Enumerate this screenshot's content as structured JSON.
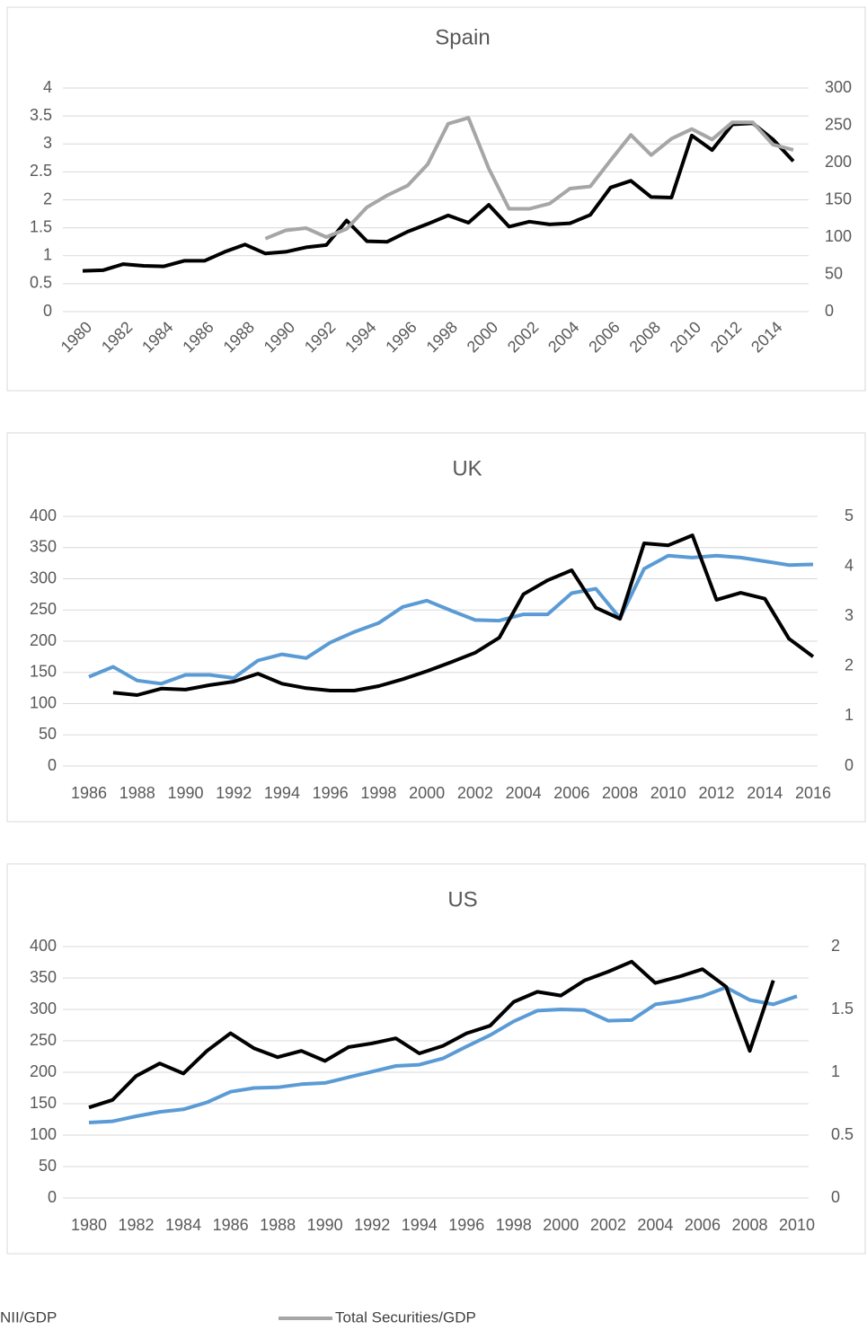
{
  "chart_data": [
    {
      "type": "line",
      "title": "Spain",
      "categories": [
        "1980",
        null,
        "1982",
        null,
        "1984",
        null,
        "1986",
        null,
        "1988",
        null,
        "1990",
        null,
        "1992",
        null,
        "1994",
        null,
        "1996",
        null,
        "1998",
        null,
        "2000",
        null,
        "2002",
        null,
        "2004",
        null,
        "2006",
        null,
        "2008",
        null,
        "2010",
        null,
        "2012",
        null,
        "2014",
        null
      ],
      "series": [
        {
          "name": "NII/GDP",
          "color": "#000000",
          "values": [
            0.73,
            0.74,
            0.85,
            0.82,
            0.81,
            0.91,
            0.91,
            1.07,
            1.2,
            1.04,
            1.07,
            1.15,
            1.19,
            1.63,
            1.26,
            1.25,
            1.43,
            1.57,
            1.72,
            1.59,
            1.91,
            1.52,
            1.61,
            1.56,
            1.58,
            1.73,
            2.22,
            2.34,
            2.05,
            2.04,
            3.15,
            2.89,
            3.35,
            3.37,
            3.08,
            2.69
          ]
        },
        {
          "name": "Total Securities/GDP",
          "color": "#a6a6a6",
          "axis": "y2",
          "values": [
            null,
            null,
            null,
            null,
            null,
            null,
            null,
            null,
            null,
            98,
            109,
            112,
            100,
            111,
            140,
            156,
            169,
            198,
            252,
            260,
            192,
            138,
            138,
            145,
            165,
            168,
            203,
            237,
            210,
            232,
            245,
            231,
            254,
            254,
            224,
            217
          ]
        }
      ],
      "ylim": [
        0,
        4
      ],
      "yticks": [
        0,
        0.5,
        1,
        1.5,
        2,
        2.5,
        3,
        3.5,
        4
      ],
      "y2lim": [
        0,
        300
      ],
      "y2ticks": [
        0,
        50,
        100,
        150,
        200,
        250,
        300
      ],
      "grid": true
    },
    {
      "type": "line",
      "title": "UK",
      "categories": [
        "1986",
        null,
        "1988",
        null,
        "1990",
        null,
        "1992",
        null,
        "1994",
        null,
        "1996",
        null,
        "1998",
        null,
        "2000",
        null,
        "2002",
        null,
        "2004",
        null,
        "2006",
        null,
        "2008",
        null,
        "2010",
        null,
        "2012",
        null,
        "2014",
        null,
        "2016"
      ],
      "series": [
        {
          "color": "#5b9bd5",
          "values": [
            143,
            159,
            137,
            132,
            146,
            146,
            141,
            169,
            179,
            173,
            198,
            215,
            229,
            255,
            265,
            249,
            234,
            233,
            243,
            243,
            277,
            284,
            237,
            316,
            337,
            334,
            337,
            334,
            328,
            322,
            323
          ]
        },
        {
          "color": "#000000",
          "axis": "y2",
          "values": [
            null,
            1.47,
            1.42,
            1.55,
            1.53,
            1.62,
            1.69,
            1.85,
            1.65,
            1.56,
            1.51,
            1.51,
            1.6,
            1.74,
            1.9,
            2.08,
            2.27,
            2.57,
            3.44,
            3.72,
            3.92,
            3.17,
            2.95,
            4.46,
            4.42,
            4.62,
            3.33,
            3.47,
            3.35,
            2.55,
            2.19
          ]
        }
      ],
      "ylim": [
        0,
        400
      ],
      "yticks": [
        0,
        50,
        100,
        150,
        200,
        250,
        300,
        350,
        400
      ],
      "y2lim": [
        0,
        5
      ],
      "y2ticks": [
        0,
        1,
        2,
        3,
        4,
        5
      ],
      "grid": true
    },
    {
      "type": "line",
      "title": "US",
      "categories": [
        "1980",
        null,
        "1982",
        null,
        "1984",
        null,
        "1986",
        null,
        "1988",
        null,
        "1990",
        null,
        "1992",
        null,
        "1994",
        null,
        "1996",
        null,
        "1998",
        null,
        "2000",
        null,
        "2002",
        null,
        "2004",
        null,
        "2006",
        null,
        "2008",
        null,
        "2010"
      ],
      "series": [
        {
          "color": "#5b9bd5",
          "values": [
            120,
            122,
            130,
            137,
            141,
            152,
            169,
            175,
            176,
            181,
            183,
            192,
            201,
            210,
            212,
            222,
            241,
            259,
            281,
            298,
            300,
            299,
            282,
            283,
            308,
            313,
            321,
            335,
            315,
            308,
            321
          ]
        },
        {
          "color": "#000000",
          "axis": "y2",
          "values": [
            0.72,
            0.78,
            0.97,
            1.07,
            0.99,
            1.17,
            1.31,
            1.19,
            1.12,
            1.17,
            1.09,
            1.2,
            1.23,
            1.27,
            1.15,
            1.21,
            1.31,
            1.37,
            1.56,
            1.64,
            1.61,
            1.73,
            1.8,
            1.88,
            1.71,
            1.76,
            1.82,
            1.68,
            1.17,
            1.73,
            null
          ]
        }
      ],
      "ylim": [
        0,
        400
      ],
      "yticks": [
        0,
        50,
        100,
        150,
        200,
        250,
        300,
        350,
        400
      ],
      "y2lim": [
        0,
        2
      ],
      "y2ticks": [
        0,
        0.5,
        1,
        1.5,
        2
      ],
      "grid": true
    }
  ]
}
